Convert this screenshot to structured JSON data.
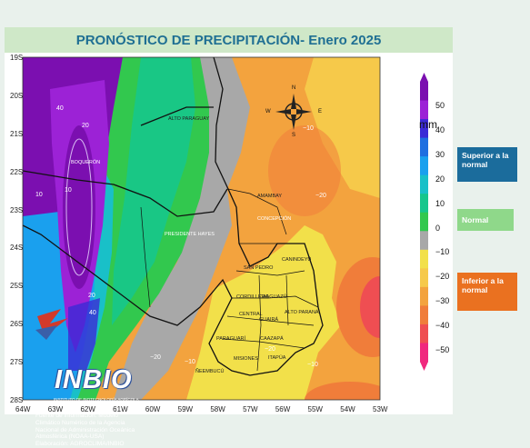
{
  "title": "PRONÓSTICO DE PRECIPITACIÓN- Enero 2025",
  "latitude_labels": [
    "19S",
    "20S",
    "21S",
    "22S",
    "23S",
    "24S",
    "25S",
    "26S",
    "27S",
    "28S"
  ],
  "longitude_labels": [
    "64W",
    "63W",
    "62W",
    "61W",
    "60W",
    "59W",
    "58W",
    "57W",
    "56W",
    "55W",
    "54W",
    "53W"
  ],
  "colorbar": {
    "unit": "mm",
    "ticks": [
      "50",
      "40",
      "30",
      "20",
      "10",
      "0",
      "−10",
      "−20",
      "−30",
      "−40",
      "−50"
    ],
    "colors": [
      "#7b0fb0",
      "#9c22d6",
      "#3b2bd6",
      "#1f6fe0",
      "#1aa0ee",
      "#19c0c8",
      "#16c68c",
      "#32c84e",
      "#a8a8a8",
      "#f2e04a",
      "#f6c94a",
      "#f3a33e",
      "#f07d3a",
      "#ef4e52",
      "#f0287e"
    ]
  },
  "categories": [
    {
      "label": "Superior a la normal",
      "color": "#1b6c9c"
    },
    {
      "label": "Normal",
      "color": "#8fd88a"
    },
    {
      "label": "Inferior a la normal",
      "color": "#ea7120"
    }
  ],
  "compass": {
    "n": "N",
    "s": "S",
    "e": "E",
    "w": "W"
  },
  "places": [
    {
      "name": "ALTO PARAGUAY",
      "white": false
    },
    {
      "name": "BOQUERÓN",
      "white": true
    },
    {
      "name": "PRESIDENTE HAYES",
      "white": true
    },
    {
      "name": "AMAMBAY",
      "white": false
    },
    {
      "name": "CONCEPCIÓN",
      "white": true
    },
    {
      "name": "SAN PEDRO",
      "white": false
    },
    {
      "name": "CANINDEYÚ",
      "white": false
    },
    {
      "name": "CORDILLERA",
      "white": false
    },
    {
      "name": "CAAGUAZÚ",
      "white": false
    },
    {
      "name": "ALTO PARANÁ",
      "white": false
    },
    {
      "name": "GUAIRÁ",
      "white": false
    },
    {
      "name": "PARAGUARÍ",
      "white": false
    },
    {
      "name": "CAAZAPÁ",
      "white": false
    },
    {
      "name": "MISIONES",
      "white": false
    },
    {
      "name": "ITAPÚA",
      "white": false
    },
    {
      "name": "ÑEEMBUCÚ",
      "white": false
    },
    {
      "name": "CENTRAL",
      "white": false
    }
  ],
  "contour_labels": [
    "40",
    "20",
    "10",
    "10",
    "20",
    "40",
    "−10",
    "−20",
    "−20",
    "−10",
    "−10",
    "−20"
  ],
  "logo": {
    "name": "INBIO",
    "tagline": "INSTITUTO DE BIOTECNOLOGÍA AGRÍCOLA"
  },
  "credit": {
    "lines": [
      "Fuente de información: Modelo",
      "Climático Numérico de la Agencia",
      "Nacional de Administración Oceánica",
      "Atmosférica (NOAA-USA)",
      "Elaboración: AGROCLIMA/INBIO"
    ]
  }
}
